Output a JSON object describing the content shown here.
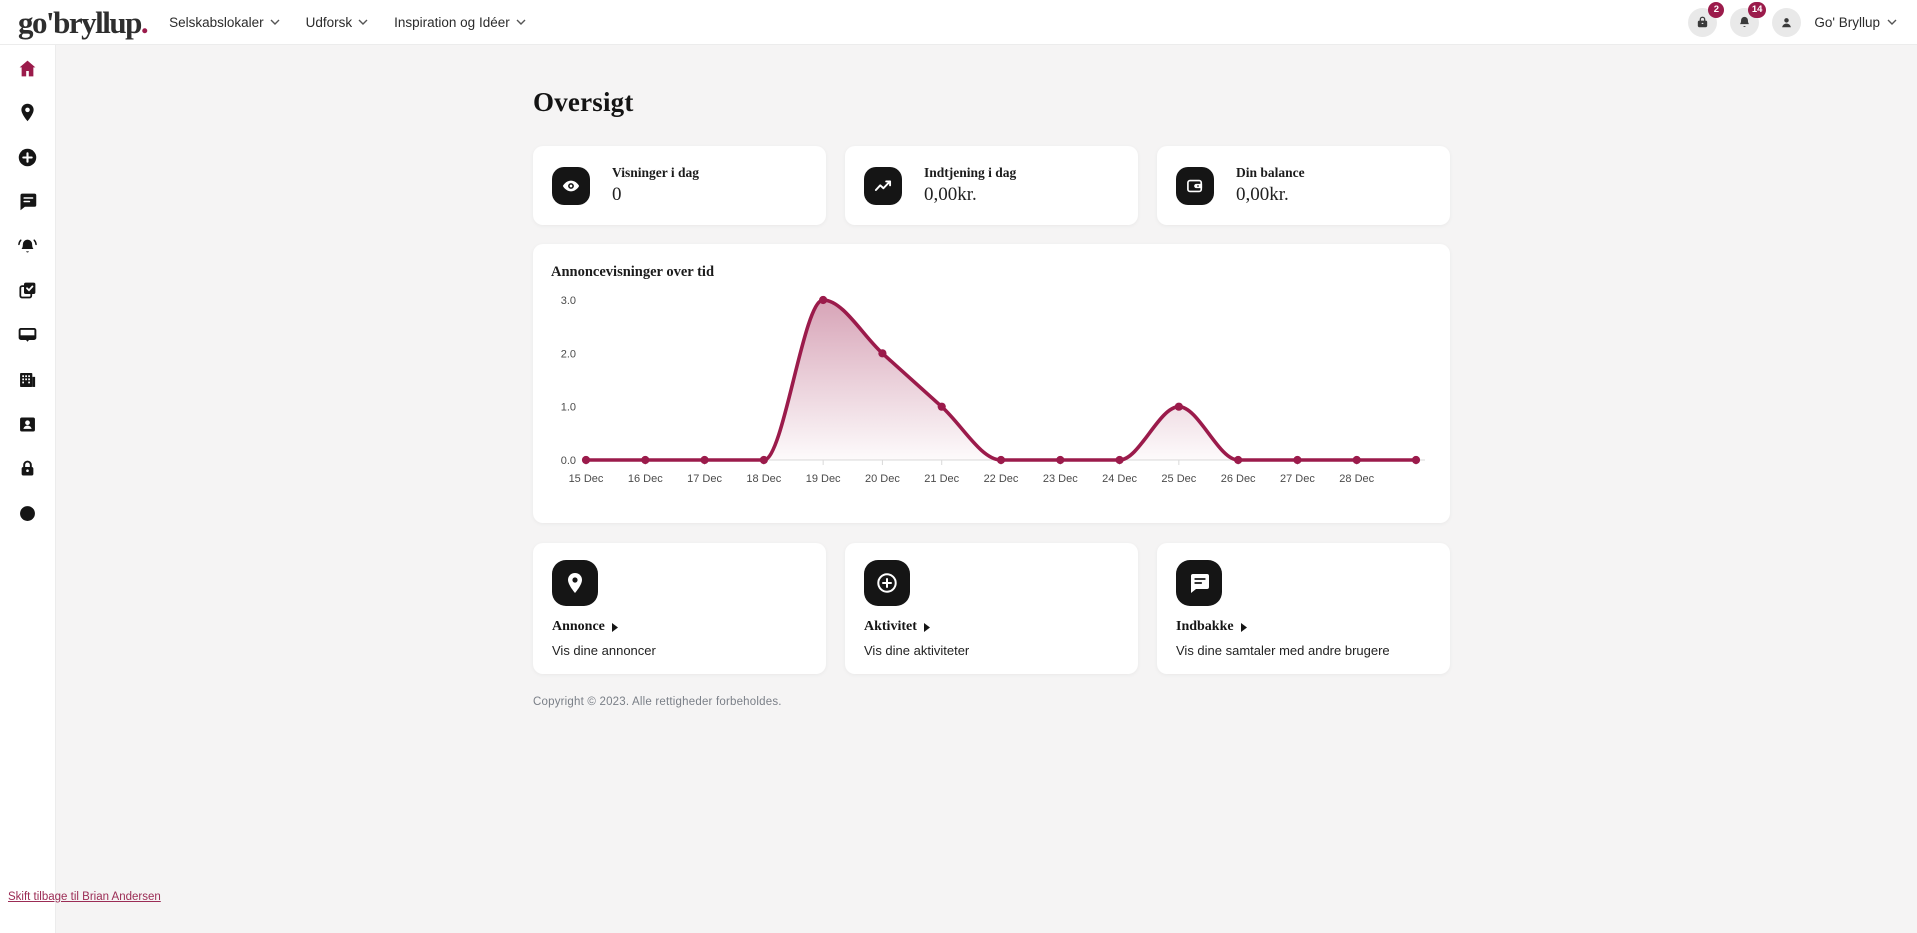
{
  "brand": {
    "logo_text": "go'bryllup",
    "logo_dot": ".",
    "accent_color": "#9b1b4b"
  },
  "header": {
    "nav": [
      {
        "label": "Selskabslokaler"
      },
      {
        "label": "Udforsk"
      },
      {
        "label": "Inspiration og Idéer"
      }
    ],
    "cart_badge": "2",
    "notifications_badge": "14",
    "user_menu_label": "Go' Bryllup"
  },
  "sidebar": {
    "items": [
      {
        "icon": "home-icon",
        "active": true
      },
      {
        "icon": "map-pin-icon",
        "active": false
      },
      {
        "icon": "plus-circle-icon",
        "active": false
      },
      {
        "icon": "message-square-icon",
        "active": false
      },
      {
        "icon": "bell-ring-icon",
        "active": false
      },
      {
        "icon": "tasks-check-icon",
        "active": false
      },
      {
        "icon": "board-icon",
        "active": false
      },
      {
        "icon": "building-icon",
        "active": false
      },
      {
        "icon": "contact-card-icon",
        "active": false
      },
      {
        "icon": "lock-icon",
        "active": false
      },
      {
        "icon": "dot-icon",
        "active": false
      }
    ]
  },
  "page": {
    "title": "Oversigt"
  },
  "stats": [
    {
      "icon": "eye-icon",
      "label": "Visninger i dag",
      "value": "0"
    },
    {
      "icon": "trending-up-icon",
      "label": "Indtjening i dag",
      "value": "0,00kr."
    },
    {
      "icon": "wallet-icon",
      "label": "Din balance",
      "value": "0,00kr."
    }
  ],
  "chart_data": {
    "type": "line",
    "title": "Annoncevisninger over tid",
    "x": [
      "15 Dec",
      "16 Dec",
      "17 Dec",
      "18 Dec",
      "19 Dec",
      "20 Dec",
      "21 Dec",
      "22 Dec",
      "23 Dec",
      "24 Dec",
      "25 Dec",
      "26 Dec",
      "27 Dec",
      "28 Dec",
      ""
    ],
    "values": [
      0,
      0,
      0,
      0,
      3,
      2,
      1,
      0,
      0,
      0,
      1,
      0,
      0,
      0,
      0
    ],
    "y_ticks": [
      0,
      1,
      2,
      3
    ],
    "ylim": [
      0,
      3
    ],
    "xlabel": "",
    "ylabel": "",
    "grid": false,
    "legend": false,
    "line_color": "#9b1b4b",
    "fill_top": "rgba(155,27,75,0.40)",
    "fill_bottom": "rgba(155,27,75,0.02)",
    "axis_color": "#d9d9d9",
    "tick_label_color": "#4b4b4b"
  },
  "shortcuts": [
    {
      "icon": "map-pin-icon",
      "title": "Annonce",
      "subtitle": "Vis dine annoncer"
    },
    {
      "icon": "plus-circle-icon",
      "title": "Aktivitet",
      "subtitle": "Vis dine aktiviteter"
    },
    {
      "icon": "message-square-icon",
      "title": "Indbakke",
      "subtitle": "Vis dine samtaler med andre brugere"
    }
  ],
  "footer": {
    "copyright": "Copyright © 2023. Alle rettigheder forbeholdes."
  },
  "impersonation": {
    "link_label": "Skift tilbage til Brian Andersen"
  }
}
